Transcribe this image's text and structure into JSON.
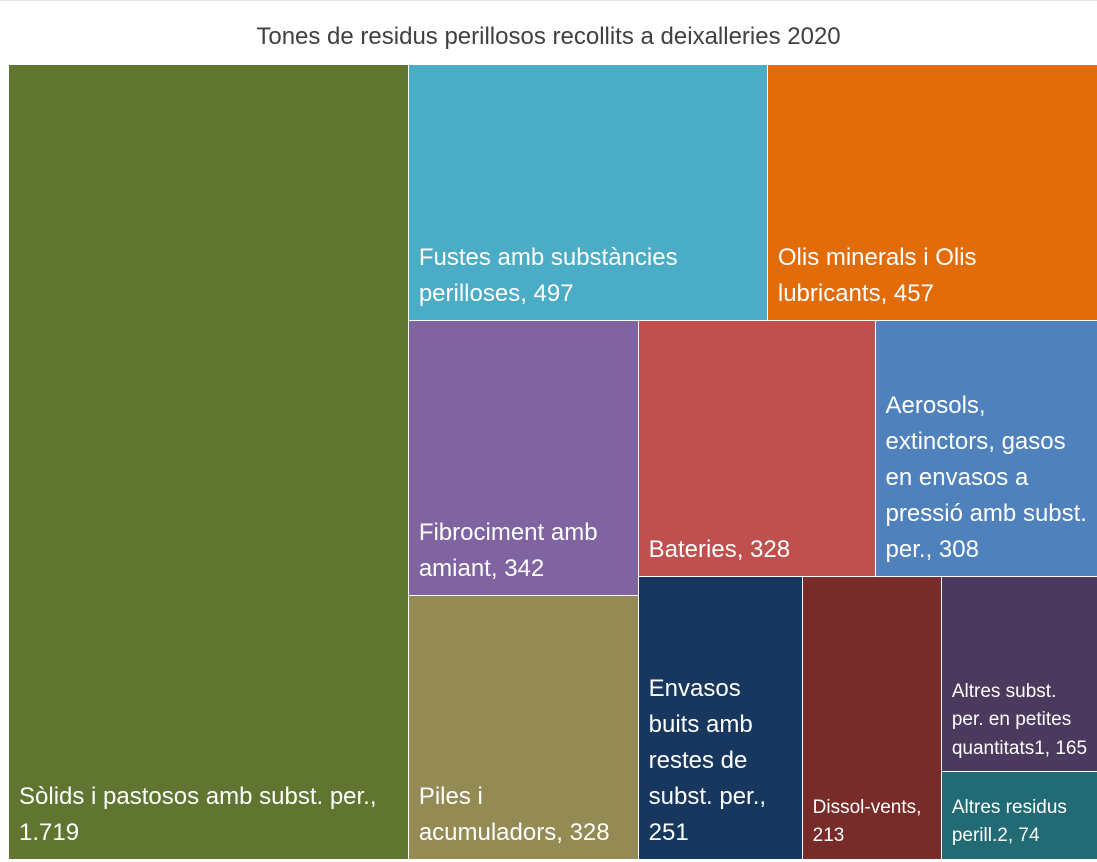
{
  "chart_data": {
    "type": "treemap",
    "title": "Tones de residus perillosos recollits a deixalleries 2020",
    "categories": [
      "Sòlids i pastosos amb subst. per.",
      "Fustes amb substàncies perilloses",
      "Olis minerals i Olis lubricants",
      "Fibrociment amb amiant",
      "Piles i acumuladors",
      "Bateries",
      "Aerosols, extinctors, gasos en envasos a pressió amb subst. per.",
      "Envasos buits amb restes de subst. per.",
      "Dissol-vents",
      "Altres subst. per. en petites quantitats1",
      "Altres residus perill.2"
    ],
    "values": [
      1719,
      497,
      457,
      342,
      328,
      328,
      308,
      251,
      213,
      165,
      74
    ],
    "value_labels": [
      "1.719",
      "497",
      "457",
      "342",
      "328",
      "328",
      "308",
      "251",
      "213",
      "165",
      "74"
    ],
    "colors": [
      "#5f7530",
      "#4bacc6",
      "#e36c0a",
      "#8064a2",
      "#948a54",
      "#c0504d",
      "#4f81bd",
      "#17375e",
      "#772c2a",
      "#4b3a5e",
      "#226a74"
    ]
  }
}
